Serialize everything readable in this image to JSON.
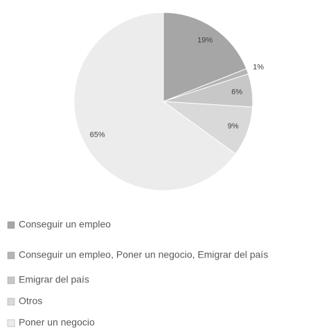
{
  "chart_data": {
    "type": "pie",
    "categories": [
      "Conseguir un empleo",
      "Conseguir un empleo, Poner un negocio, Emigrar del país",
      "Emigrar del país",
      "Otros",
      "Poner un negocio"
    ],
    "values": [
      19,
      1,
      6,
      9,
      65
    ],
    "value_labels": [
      "19%",
      "1%",
      "6%",
      "9%",
      "65%"
    ],
    "colors": [
      "#a6a6a6",
      "#b4b4b4",
      "#c7c7c7",
      "#d9d9d9",
      "#ececec"
    ]
  }
}
